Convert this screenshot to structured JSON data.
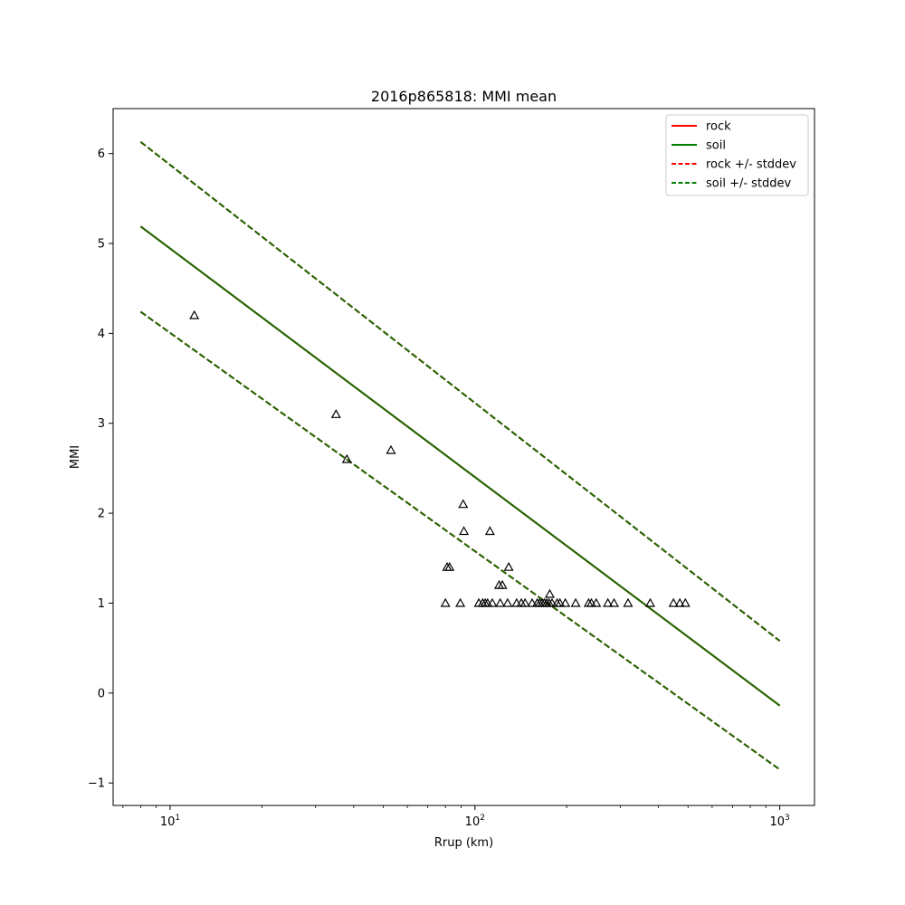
{
  "chart_data": {
    "type": "scatter",
    "title": "2016p865818: MMI mean",
    "xlabel": "Rrup (km)",
    "ylabel": "MMI",
    "xscale": "log",
    "xlim": [
      6.5,
      1300
    ],
    "ylim": [
      -1.25,
      6.5
    ],
    "x_tick_labels": [
      {
        "value": 10,
        "base": "10",
        "exp": "1"
      },
      {
        "value": 100,
        "base": "10",
        "exp": "2"
      },
      {
        "value": 1000,
        "base": "10",
        "exp": "3"
      }
    ],
    "y_ticks": [
      -1,
      0,
      1,
      2,
      3,
      4,
      5,
      6
    ],
    "y_tick_labels": [
      "−1",
      "0",
      "1",
      "2",
      "3",
      "4",
      "5",
      "6"
    ],
    "grid": false,
    "legend_position": "top-right",
    "legend": [
      {
        "label": "rock",
        "color": "#ff0000",
        "dash": "solid"
      },
      {
        "label": "soil",
        "color": "#008000",
        "dash": "solid"
      },
      {
        "label": "rock +/- stddev",
        "color": "#ff0000",
        "dash": "dashed"
      },
      {
        "label": "soil +/- stddev",
        "color": "#008000",
        "dash": "dashed"
      }
    ],
    "lines": [
      {
        "name": "rock",
        "color": "#ff0000",
        "dash": "solid",
        "x": [
          8,
          1000
        ],
        "y": [
          5.19,
          -0.14
        ]
      },
      {
        "name": "soil",
        "color": "#1a6a00",
        "dash": "solid",
        "x": [
          8,
          1000
        ],
        "y": [
          5.19,
          -0.14
        ]
      },
      {
        "name": "rock +/- stddev",
        "color": "#ff0000",
        "dash": "dashed",
        "x": [
          8,
          1000
        ],
        "y": [
          6.13,
          0.58
        ]
      },
      {
        "name": "rock +/- stddev",
        "color": "#ff0000",
        "dash": "dashed",
        "x": [
          8,
          1000
        ],
        "y": [
          4.24,
          -0.85
        ]
      },
      {
        "name": "soil +/- stddev",
        "color": "#1a6a00",
        "dash": "dashed",
        "x": [
          8,
          1000
        ],
        "y": [
          6.13,
          0.58
        ]
      },
      {
        "name": "soil +/- stddev",
        "color": "#1a6a00",
        "dash": "dashed",
        "x": [
          8,
          1000
        ],
        "y": [
          4.24,
          -0.85
        ]
      }
    ],
    "observations": {
      "marker": "triangle-open",
      "color": "#000000",
      "points": [
        [
          12.0,
          4.2
        ],
        [
          35.0,
          3.1
        ],
        [
          38.0,
          2.6
        ],
        [
          53.0,
          2.7
        ],
        [
          91.5,
          2.1
        ],
        [
          92.0,
          1.8
        ],
        [
          112.0,
          1.8
        ],
        [
          81.0,
          1.4
        ],
        [
          82.5,
          1.4
        ],
        [
          129.0,
          1.4
        ],
        [
          120.0,
          1.2
        ],
        [
          123.0,
          1.2
        ],
        [
          176.0,
          1.1
        ],
        [
          80.0,
          1.0
        ],
        [
          89.5,
          1.0
        ],
        [
          103.0,
          1.0
        ],
        [
          106.0,
          1.0
        ],
        [
          108.0,
          1.0
        ],
        [
          110.0,
          1.0
        ],
        [
          114.0,
          1.0
        ],
        [
          121.0,
          1.0
        ],
        [
          128.0,
          1.0
        ],
        [
          137.0,
          1.0
        ],
        [
          142.0,
          1.0
        ],
        [
          146.0,
          1.0
        ],
        [
          154.0,
          1.0
        ],
        [
          160.0,
          1.0
        ],
        [
          163.0,
          1.0
        ],
        [
          166.0,
          1.0
        ],
        [
          169.0,
          1.0
        ],
        [
          172.0,
          1.0
        ],
        [
          175.0,
          1.0
        ],
        [
          179.0,
          1.0
        ],
        [
          186.0,
          1.0
        ],
        [
          190.0,
          1.0
        ],
        [
          198.0,
          1.0
        ],
        [
          214.0,
          1.0
        ],
        [
          236.0,
          1.0
        ],
        [
          241.0,
          1.0
        ],
        [
          250.0,
          1.0
        ],
        [
          273.0,
          1.0
        ],
        [
          286.0,
          1.0
        ],
        [
          318.0,
          1.0
        ],
        [
          376.0,
          1.0
        ],
        [
          448.0,
          1.0
        ],
        [
          470.0,
          1.0
        ],
        [
          490.0,
          1.0
        ]
      ]
    }
  }
}
